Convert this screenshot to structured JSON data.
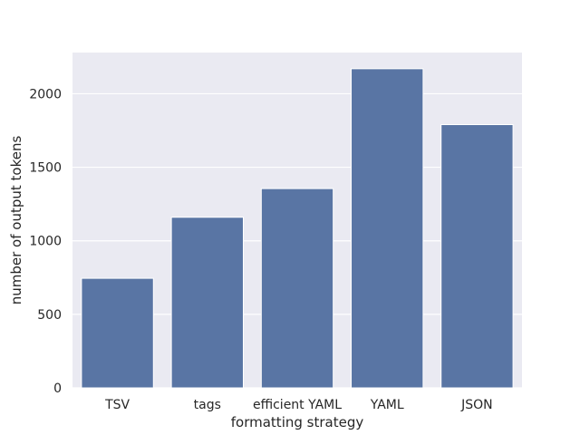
{
  "chart_data": {
    "type": "bar",
    "title": "",
    "xlabel": "formatting strategy",
    "ylabel": "number of output tokens",
    "categories": [
      "TSV",
      "tags",
      "efficient YAML",
      "YAML",
      "JSON"
    ],
    "values": [
      745,
      1160,
      1355,
      2170,
      1790
    ],
    "ylim": [
      0,
      2280
    ],
    "yticks": [
      0,
      500,
      1000,
      1500,
      2000
    ],
    "ytick_labels": [
      "0",
      "500",
      "1000",
      "1500",
      "2000"
    ],
    "grid": true,
    "bar_color": "#5975a4",
    "background_color": "#eaeaf2",
    "grid_color": "#ffffff"
  }
}
